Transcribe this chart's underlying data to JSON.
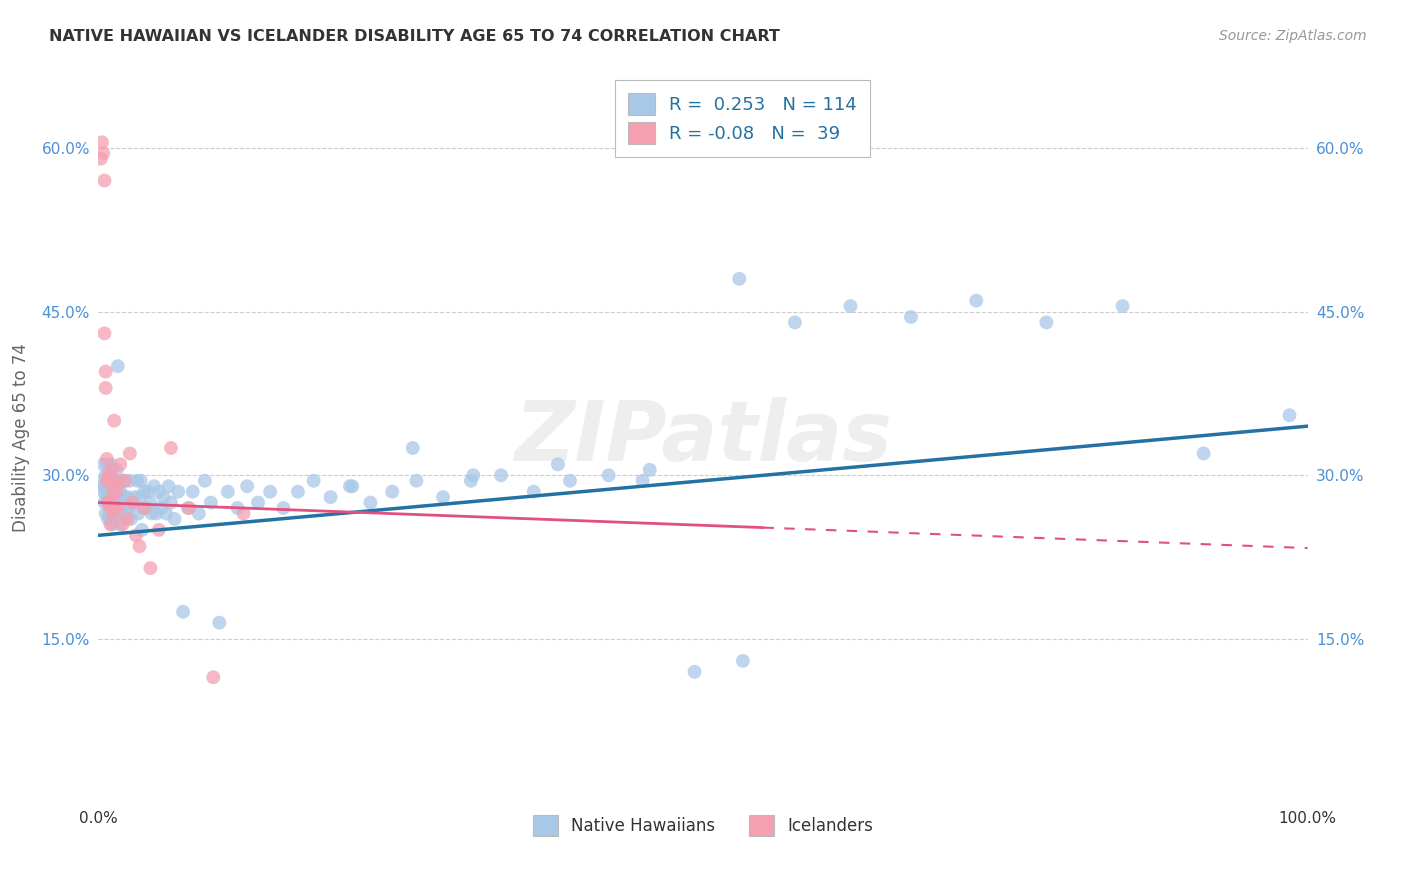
{
  "title": "NATIVE HAWAIIAN VS ICELANDER DISABILITY AGE 65 TO 74 CORRELATION CHART",
  "source": "Source: ZipAtlas.com",
  "ylabel": "Disability Age 65 to 74",
  "xlim": [
    0,
    1.0
  ],
  "ylim": [
    0.0,
    0.67
  ],
  "yticks": [
    0.15,
    0.3,
    0.45,
    0.6
  ],
  "xticks": [
    0.0,
    1.0
  ],
  "R_blue": 0.253,
  "N_blue": 114,
  "R_pink": -0.08,
  "N_pink": 39,
  "blue_scatter_color": "#A8C8E8",
  "pink_scatter_color": "#F4A0B0",
  "blue_line_color": "#2471A3",
  "pink_line_color": "#E05080",
  "tick_color": "#4A90D9",
  "grid_color": "#CCCCCC",
  "watermark": "ZIPatlas",
  "legend_label_blue": "Native Hawaiians",
  "legend_label_pink": "Icelanders",
  "blue_x": [
    0.003,
    0.004,
    0.004,
    0.005,
    0.005,
    0.006,
    0.006,
    0.006,
    0.007,
    0.007,
    0.008,
    0.008,
    0.008,
    0.009,
    0.009,
    0.009,
    0.01,
    0.01,
    0.01,
    0.01,
    0.011,
    0.011,
    0.011,
    0.012,
    0.012,
    0.012,
    0.013,
    0.013,
    0.014,
    0.014,
    0.015,
    0.015,
    0.016,
    0.016,
    0.017,
    0.017,
    0.018,
    0.018,
    0.019,
    0.02,
    0.02,
    0.021,
    0.022,
    0.023,
    0.024,
    0.025,
    0.026,
    0.027,
    0.028,
    0.03,
    0.032,
    0.033,
    0.034,
    0.035,
    0.036,
    0.037,
    0.038,
    0.04,
    0.041,
    0.043,
    0.044,
    0.046,
    0.048,
    0.05,
    0.052,
    0.054,
    0.056,
    0.058,
    0.06,
    0.063,
    0.066,
    0.07,
    0.074,
    0.078,
    0.083,
    0.088,
    0.093,
    0.1,
    0.107,
    0.115,
    0.123,
    0.132,
    0.142,
    0.153,
    0.165,
    0.178,
    0.192,
    0.208,
    0.225,
    0.243,
    0.263,
    0.285,
    0.308,
    0.333,
    0.36,
    0.39,
    0.422,
    0.456,
    0.493,
    0.533,
    0.576,
    0.622,
    0.672,
    0.726,
    0.784,
    0.847,
    0.914,
    0.985,
    0.53,
    0.45,
    0.38,
    0.31,
    0.26,
    0.21
  ],
  "blue_y": [
    0.295,
    0.285,
    0.31,
    0.29,
    0.275,
    0.3,
    0.285,
    0.265,
    0.31,
    0.28,
    0.295,
    0.275,
    0.26,
    0.305,
    0.285,
    0.265,
    0.3,
    0.28,
    0.26,
    0.31,
    0.29,
    0.27,
    0.255,
    0.295,
    0.275,
    0.26,
    0.285,
    0.265,
    0.29,
    0.27,
    0.305,
    0.28,
    0.4,
    0.27,
    0.29,
    0.265,
    0.285,
    0.255,
    0.275,
    0.295,
    0.265,
    0.28,
    0.295,
    0.265,
    0.28,
    0.27,
    0.295,
    0.26,
    0.275,
    0.28,
    0.295,
    0.265,
    0.28,
    0.295,
    0.25,
    0.27,
    0.285,
    0.27,
    0.285,
    0.275,
    0.265,
    0.29,
    0.265,
    0.285,
    0.27,
    0.28,
    0.265,
    0.29,
    0.275,
    0.26,
    0.285,
    0.175,
    0.27,
    0.285,
    0.265,
    0.295,
    0.275,
    0.165,
    0.285,
    0.27,
    0.29,
    0.275,
    0.285,
    0.27,
    0.285,
    0.295,
    0.28,
    0.29,
    0.275,
    0.285,
    0.295,
    0.28,
    0.295,
    0.3,
    0.285,
    0.295,
    0.3,
    0.305,
    0.12,
    0.13,
    0.44,
    0.455,
    0.445,
    0.46,
    0.44,
    0.455,
    0.32,
    0.355,
    0.48,
    0.295,
    0.31,
    0.3,
    0.325,
    0.29
  ],
  "pink_x": [
    0.002,
    0.003,
    0.004,
    0.005,
    0.005,
    0.006,
    0.006,
    0.007,
    0.007,
    0.008,
    0.008,
    0.009,
    0.009,
    0.01,
    0.01,
    0.011,
    0.011,
    0.012,
    0.012,
    0.013,
    0.014,
    0.015,
    0.016,
    0.017,
    0.018,
    0.02,
    0.022,
    0.024,
    0.026,
    0.028,
    0.031,
    0.034,
    0.038,
    0.043,
    0.05,
    0.06,
    0.075,
    0.095,
    0.12
  ],
  "pink_y": [
    0.59,
    0.605,
    0.595,
    0.57,
    0.43,
    0.395,
    0.38,
    0.315,
    0.295,
    0.3,
    0.275,
    0.295,
    0.275,
    0.27,
    0.255,
    0.305,
    0.28,
    0.29,
    0.265,
    0.35,
    0.27,
    0.285,
    0.27,
    0.295,
    0.31,
    0.255,
    0.295,
    0.26,
    0.32,
    0.275,
    0.245,
    0.235,
    0.27,
    0.215,
    0.25,
    0.325,
    0.27,
    0.115,
    0.265
  ],
  "blue_line_y_at_0": 0.245,
  "blue_line_y_at_1": 0.345,
  "pink_line_y_at_0": 0.275,
  "pink_line_y_at_end": 0.25,
  "pink_line_x_end": 0.6
}
